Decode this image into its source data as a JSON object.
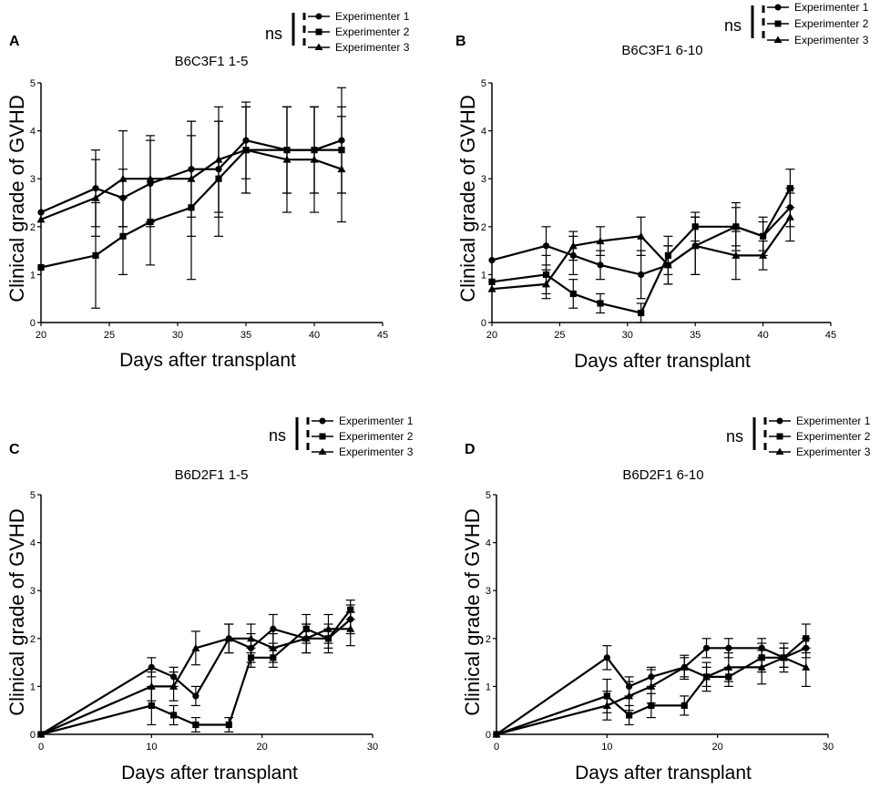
{
  "colors": {
    "line": "#000000",
    "background": "#ffffff"
  },
  "legend": {
    "ns_label": "ns",
    "entries": [
      {
        "label": "Experimenter 1",
        "marker": "circle"
      },
      {
        "label": "Experimenter 2",
        "marker": "square"
      },
      {
        "label": "Experimenter 3",
        "marker": "triangle"
      }
    ]
  },
  "chart_data": [
    {
      "panel": "A",
      "title": "B6C3F1 1-5",
      "type": "line",
      "xlabel": "Days after transplant",
      "ylabel": "Clinical grade of GVHD",
      "xlim": [
        20,
        45
      ],
      "ylim": [
        0,
        5
      ],
      "xticks": [
        20,
        25,
        30,
        35,
        40,
        45
      ],
      "yticks": [
        0,
        1,
        2,
        3,
        4,
        5
      ],
      "series": [
        {
          "name": "Experimenter 1",
          "marker": "circle",
          "x": [
            20,
            24,
            26,
            28,
            31,
            33,
            35,
            38,
            40,
            42
          ],
          "y": [
            2.3,
            2.8,
            2.6,
            2.9,
            3.2,
            3.2,
            3.8,
            3.6,
            3.6,
            3.8
          ],
          "err": [
            0,
            0.8,
            0.6,
            0.9,
            1.0,
            1.0,
            0.8,
            0.9,
            0.9,
            1.1
          ]
        },
        {
          "name": "Experimenter 2",
          "marker": "square",
          "x": [
            20,
            24,
            26,
            28,
            31,
            33,
            35,
            38,
            40,
            42
          ],
          "y": [
            1.15,
            1.4,
            1.8,
            2.1,
            2.4,
            3.0,
            3.6,
            3.6,
            3.6,
            3.6
          ],
          "err": [
            0,
            1.1,
            0.8,
            0.9,
            1.5,
            1.2,
            0.9,
            0.9,
            0.9,
            0.9
          ]
        },
        {
          "name": "Experimenter 3",
          "marker": "triangle",
          "x": [
            20,
            24,
            26,
            28,
            31,
            33,
            35,
            38,
            40,
            42
          ],
          "y": [
            2.15,
            2.6,
            3.0,
            3.0,
            3.0,
            3.4,
            3.6,
            3.4,
            3.4,
            3.2
          ],
          "err": [
            0,
            0.8,
            1.0,
            0.9,
            1.2,
            1.1,
            0.9,
            1.1,
            1.1,
            1.1
          ]
        }
      ]
    },
    {
      "panel": "B",
      "title": "B6C3F1 6-10",
      "type": "line",
      "xlabel": "Days after transplant",
      "ylabel": "Clinical grade of GVHD",
      "xlim": [
        20,
        45
      ],
      "ylim": [
        0,
        5
      ],
      "xticks": [
        20,
        25,
        30,
        35,
        40,
        45
      ],
      "yticks": [
        0,
        1,
        2,
        3,
        4,
        5
      ],
      "series": [
        {
          "name": "Experimenter 1",
          "marker": "circle",
          "x": [
            20,
            24,
            26,
            28,
            31,
            33,
            35,
            38,
            40,
            42
          ],
          "y": [
            1.3,
            1.6,
            1.4,
            1.2,
            1.0,
            1.2,
            1.6,
            2.0,
            1.8,
            2.4
          ],
          "err": [
            0,
            0.4,
            0.4,
            0.3,
            0.5,
            0.4,
            0.6,
            0.5,
            0.4,
            0.4
          ]
        },
        {
          "name": "Experimenter 2",
          "marker": "square",
          "x": [
            20,
            24,
            26,
            28,
            31,
            33,
            35,
            38,
            40,
            42
          ],
          "y": [
            0.85,
            1.0,
            0.6,
            0.4,
            0.2,
            1.4,
            2.0,
            2.0,
            1.8,
            2.8
          ],
          "err": [
            0,
            0.4,
            0.3,
            0.2,
            0.2,
            0.4,
            0.3,
            0.4,
            0.3,
            0.4
          ]
        },
        {
          "name": "Experimenter 3",
          "marker": "triangle",
          "x": [
            20,
            24,
            26,
            28,
            31,
            33,
            35,
            38,
            40,
            42
          ],
          "y": [
            0.7,
            0.8,
            1.6,
            1.7,
            1.8,
            1.2,
            1.6,
            1.4,
            1.4,
            2.2
          ],
          "err": [
            0,
            0.3,
            0.3,
            0.3,
            0.4,
            0.4,
            0.6,
            0.5,
            0.3,
            0.5
          ]
        }
      ]
    },
    {
      "panel": "C",
      "title": "B6D2F1 1-5",
      "type": "line",
      "xlabel": "Days after transplant",
      "ylabel": "Clinical grade of GVHD",
      "xlim": [
        0,
        30
      ],
      "ylim": [
        0,
        5
      ],
      "xticks": [
        0,
        10,
        20,
        30
      ],
      "yticks": [
        0,
        1,
        2,
        3,
        4,
        5
      ],
      "series": [
        {
          "name": "Experimenter 1",
          "marker": "circle",
          "x": [
            0,
            10,
            12,
            14,
            17,
            19,
            21,
            24,
            26,
            28
          ],
          "y": [
            0,
            1.4,
            1.2,
            0.8,
            2.0,
            1.8,
            2.2,
            2.0,
            2.0,
            2.4
          ],
          "err": [
            0,
            0.2,
            0.2,
            0.2,
            0.3,
            0.3,
            0.3,
            0.3,
            0.3,
            0.3
          ]
        },
        {
          "name": "Experimenter 2",
          "marker": "square",
          "x": [
            0,
            10,
            12,
            14,
            17,
            19,
            21,
            24,
            26,
            28
          ],
          "y": [
            0,
            0.6,
            0.4,
            0.2,
            0.2,
            1.6,
            1.6,
            2.2,
            2.0,
            2.6
          ],
          "err": [
            0,
            0.4,
            0.2,
            0.15,
            0.15,
            0.2,
            0.2,
            0.3,
            0.2,
            0.2
          ]
        },
        {
          "name": "Experimenter 3",
          "marker": "triangle",
          "x": [
            0,
            10,
            12,
            14,
            17,
            19,
            21,
            24,
            26,
            28
          ],
          "y": [
            0,
            1.0,
            1.0,
            1.8,
            2.0,
            2.0,
            1.8,
            2.0,
            2.2,
            2.2
          ],
          "err": [
            0,
            0.3,
            0.3,
            0.35,
            0.3,
            0.3,
            0.3,
            0.3,
            0.3,
            0.35
          ]
        }
      ]
    },
    {
      "panel": "D",
      "title": "B6D2F1 6-10",
      "type": "line",
      "xlabel": "Days after transplant",
      "ylabel": "Clinical grade of GVHD",
      "xlim": [
        0,
        30
      ],
      "ylim": [
        0,
        5
      ],
      "xticks": [
        0,
        10,
        20,
        30
      ],
      "yticks": [
        0,
        1,
        2,
        3,
        4,
        5
      ],
      "series": [
        {
          "name": "Experimenter 1",
          "marker": "circle",
          "x": [
            0,
            10,
            12,
            14,
            17,
            19,
            21,
            24,
            26,
            28
          ],
          "y": [
            0,
            1.6,
            1.0,
            1.2,
            1.4,
            1.8,
            1.8,
            1.8,
            1.6,
            1.8
          ],
          "err": [
            0,
            0.25,
            0.2,
            0.2,
            0.2,
            0.2,
            0.2,
            0.2,
            0.2,
            0.2
          ]
        },
        {
          "name": "Experimenter 2",
          "marker": "square",
          "x": [
            0,
            10,
            12,
            14,
            17,
            19,
            21,
            24,
            26,
            28
          ],
          "y": [
            0,
            0.8,
            0.4,
            0.6,
            0.6,
            1.2,
            1.2,
            1.6,
            1.6,
            2.0
          ],
          "err": [
            0,
            0.35,
            0.2,
            0.25,
            0.2,
            0.2,
            0.2,
            0.3,
            0.2,
            0.3
          ]
        },
        {
          "name": "Experimenter 3",
          "marker": "triangle",
          "x": [
            0,
            10,
            12,
            14,
            17,
            19,
            21,
            24,
            26,
            28
          ],
          "y": [
            0,
            0.6,
            0.8,
            1.0,
            1.4,
            1.2,
            1.4,
            1.4,
            1.6,
            1.4
          ],
          "err": [
            0,
            0.3,
            0.3,
            0.35,
            0.25,
            0.3,
            0.3,
            0.35,
            0.3,
            0.4
          ]
        }
      ]
    }
  ]
}
